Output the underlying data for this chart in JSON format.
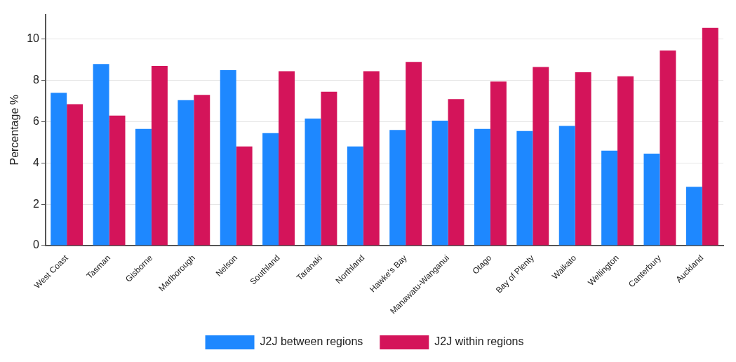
{
  "chart_data": {
    "type": "bar",
    "ylabel": "Percentage %",
    "categories": [
      "West Coast",
      "Tasman",
      "Gisborne",
      "Marlborough",
      "Nelson",
      "Southland",
      "Taranaki",
      "Northland",
      "Hawke's Bay",
      "Manawatu-Wanganui",
      "Otago",
      "Bay of Plenty",
      "Waikato",
      "Wellington",
      "Canterbury",
      "Auckland"
    ],
    "series": [
      {
        "name": "J2J between regions",
        "color": "#1e88ff",
        "values": [
          7.4,
          8.8,
          5.65,
          7.05,
          8.5,
          5.45,
          6.15,
          4.8,
          5.6,
          6.05,
          5.65,
          5.55,
          5.8,
          4.6,
          4.45,
          2.85
        ]
      },
      {
        "name": "J2J within regions",
        "color": "#d4145a",
        "values": [
          6.85,
          6.3,
          8.7,
          7.3,
          4.8,
          8.45,
          7.45,
          8.45,
          8.9,
          7.1,
          7.95,
          8.65,
          8.4,
          8.2,
          9.45,
          10.55
        ]
      }
    ],
    "ylim": [
      0,
      11.2
    ],
    "yticks": [
      0,
      2,
      4,
      6,
      8,
      10
    ],
    "grid": "y",
    "legend": "bottom"
  }
}
